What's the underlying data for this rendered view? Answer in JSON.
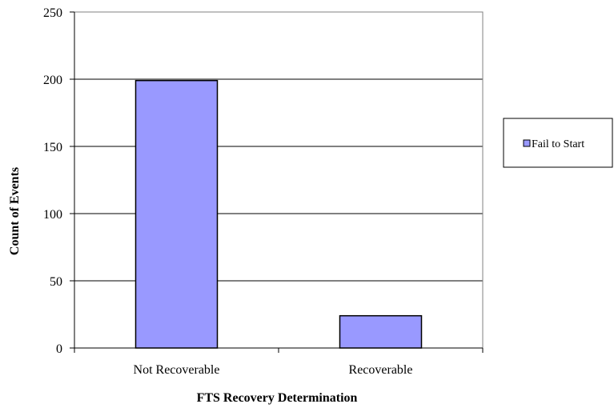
{
  "chart_data": {
    "type": "bar",
    "title": "",
    "xlabel": "FTS Recovery Determination",
    "ylabel": "Count of Events",
    "categories": [
      "Not Recoverable",
      "Recoverable"
    ],
    "series": [
      {
        "name": "Fail to Start",
        "values": [
          199,
          24
        ]
      }
    ],
    "ylim": [
      0,
      250
    ],
    "yticks": [
      0,
      50,
      100,
      150,
      200,
      250
    ],
    "grid": true,
    "legend_position": "right",
    "colors": {
      "bar_fill": "#9999ff",
      "bar_stroke": "#000000",
      "grid": "#000000",
      "plot_border": "#808080"
    }
  }
}
